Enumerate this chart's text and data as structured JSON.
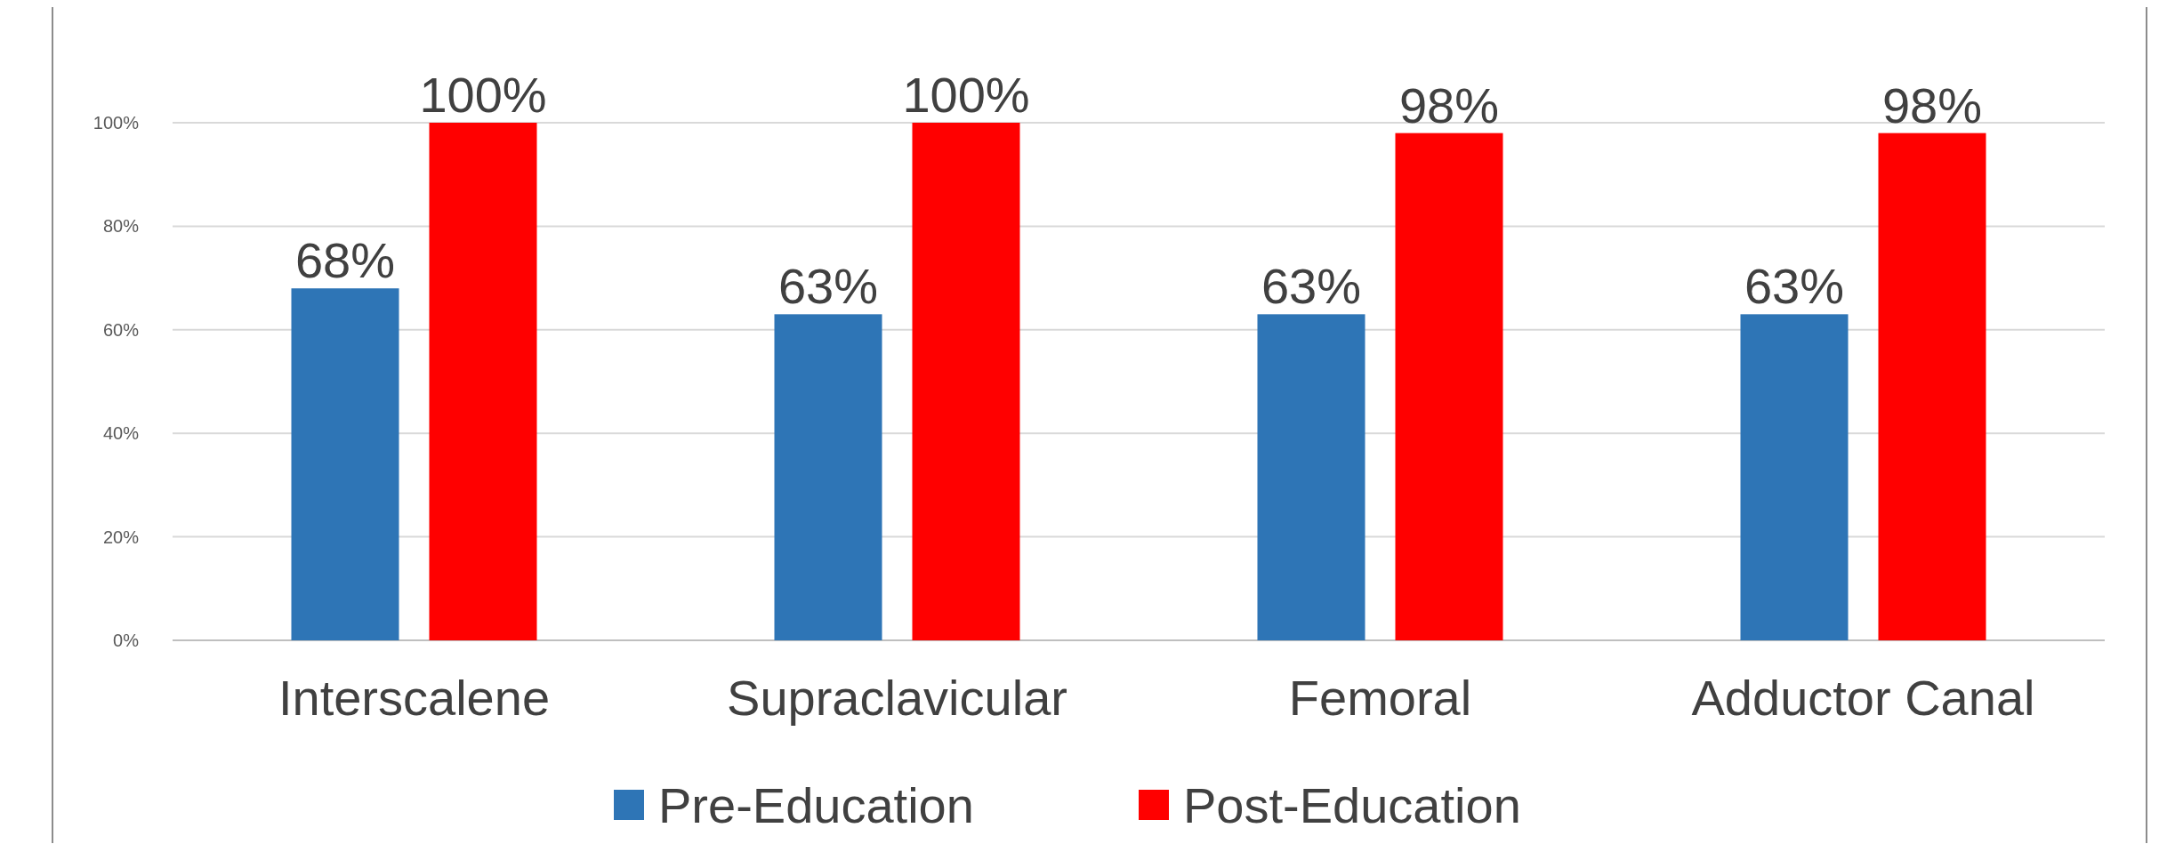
{
  "chart_data": {
    "type": "bar",
    "categories": [
      "Interscalene",
      "Supraclavicular",
      "Femoral",
      "Adductor Canal"
    ],
    "series": [
      {
        "name": "Pre-Education",
        "color": "#2e75b6",
        "values": [
          68,
          63,
          63,
          63
        ],
        "value_labels": [
          "68%",
          "63%",
          "63%",
          "63%"
        ]
      },
      {
        "name": "Post-Education",
        "color": "#ff0000",
        "values": [
          100,
          100,
          98,
          98
        ],
        "value_labels": [
          "100%",
          "100%",
          "98%",
          "98%"
        ]
      }
    ],
    "ylim": [
      0,
      100
    ],
    "yticks": [
      {
        "value": 0,
        "label": "0%"
      },
      {
        "value": 20,
        "label": "20%"
      },
      {
        "value": 40,
        "label": "40%"
      },
      {
        "value": 60,
        "label": "60%"
      },
      {
        "value": 80,
        "label": "80%"
      },
      {
        "value": 100,
        "label": "100%"
      }
    ],
    "grid": "y",
    "legend": "bottom"
  }
}
